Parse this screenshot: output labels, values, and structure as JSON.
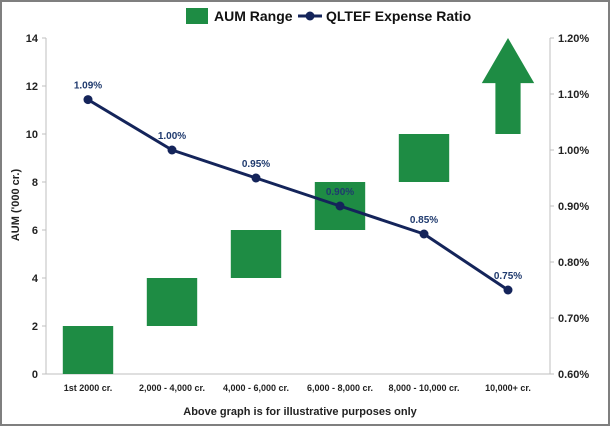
{
  "chart_data": {
    "type": "bar",
    "legend_position": "top",
    "grid": false,
    "categories": [
      "1st 2000 cr.",
      "2,000 - 4,000 cr.",
      "4,000 - 6,000 cr.",
      "6,000 - 8,000 cr.",
      "8,000 - 10,000 cr.",
      "10,000+ cr."
    ],
    "series": [
      {
        "name": "AUM Range",
        "type": "floating-bar",
        "axis": "left",
        "color": "#1e8c44",
        "ranges": [
          [
            0,
            2
          ],
          [
            2,
            4
          ],
          [
            4,
            6
          ],
          [
            6,
            8
          ],
          [
            8,
            10
          ],
          [
            10,
            14
          ]
        ],
        "last_shape": "up-arrow"
      },
      {
        "name": "QLTEF Expense Ratio",
        "type": "line",
        "axis": "right",
        "color": "#14245a",
        "values": [
          1.09,
          1.0,
          0.95,
          0.9,
          0.85,
          0.75
        ],
        "data_labels": [
          "1.09%",
          "1.00%",
          "0.95%",
          "0.90%",
          "0.85%",
          "0.75%"
        ]
      }
    ],
    "ylabel": "AUM ('000 cr.)",
    "ylim": [
      0,
      14
    ],
    "yticks": [
      "0",
      "2",
      "4",
      "6",
      "8",
      "10",
      "12",
      "14"
    ],
    "y2lim": [
      0.6,
      1.2
    ],
    "y2ticks": [
      "0.60%",
      "0.70%",
      "0.80%",
      "0.90%",
      "1.00%",
      "1.10%",
      "1.20%"
    ],
    "footnote": "Above graph is for illustrative purposes only"
  }
}
